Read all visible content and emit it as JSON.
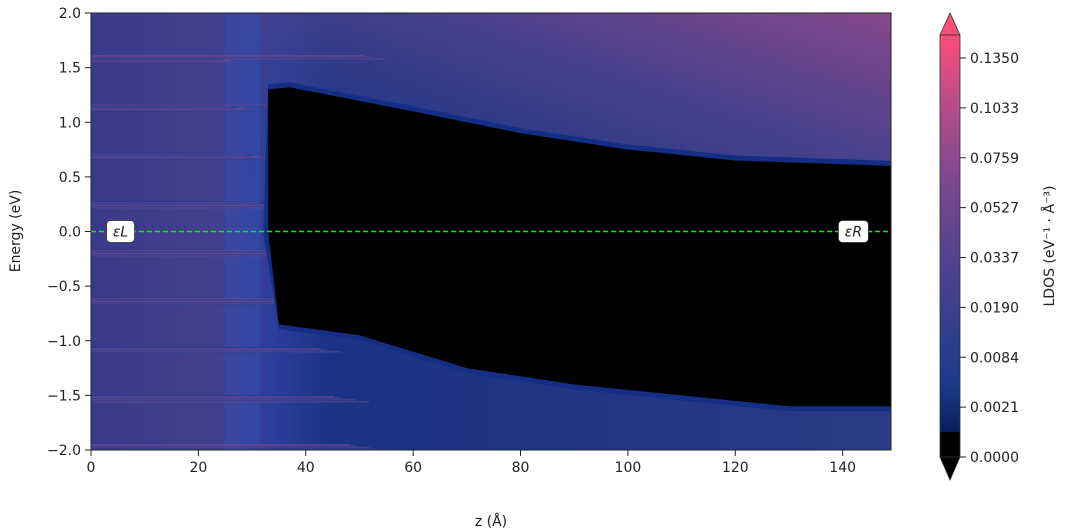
{
  "toolbar": {
    "items": [
      {
        "icon": "home-icon",
        "color": "#2a7fd4"
      },
      {
        "icon": "pencil-icon",
        "color": "#ffffff"
      },
      {
        "icon": "plus-icon",
        "color": "#2a7fd4"
      }
    ]
  },
  "chart_data": {
    "type": "heatmap",
    "title": "",
    "xlabel": "z (Å)",
    "ylabel": "Energy (eV)",
    "xlim": [
      0,
      149
    ],
    "ylim": [
      -2.0,
      2.0
    ],
    "x_ticks": [
      "0",
      "20",
      "40",
      "60",
      "80",
      "100",
      "120",
      "140"
    ],
    "x_tick_values": [
      0,
      20,
      40,
      60,
      80,
      100,
      120,
      140
    ],
    "y_ticks": [
      "−2.0",
      "−1.5",
      "−1.0",
      "−0.5",
      "0.0",
      "0.5",
      "1.0",
      "1.5",
      "2.0"
    ],
    "y_tick_values": [
      -2.0,
      -1.5,
      -1.0,
      -0.5,
      0.0,
      0.5,
      1.0,
      1.5,
      2.0
    ],
    "colorbar": {
      "label": "LDOS (eV⁻¹ · Å⁻³)",
      "ticks": [
        "0.0000",
        "0.0021",
        "0.0084",
        "0.0190",
        "0.0337",
        "0.0527",
        "0.0759",
        "0.1033",
        "0.1350"
      ],
      "colors": [
        "#000000",
        "#0a1f5c",
        "#1a3a8a",
        "#3a3f8f",
        "#55438e",
        "#70478f",
        "#8e4a8f",
        "#b24c8c",
        "#dc4f85",
        "#ff4d7a"
      ]
    },
    "gap_region": {
      "z_start": 33,
      "conduction_band_edge": [
        [
          33,
          1.3
        ],
        [
          37,
          1.32
        ],
        [
          60,
          1.1
        ],
        [
          80,
          0.9
        ],
        [
          100,
          0.75
        ],
        [
          120,
          0.65
        ],
        [
          149,
          0.6
        ]
      ],
      "valence_band_edge": [
        [
          35,
          -0.85
        ],
        [
          50,
          -0.95
        ],
        [
          70,
          -1.25
        ],
        [
          90,
          -1.4
        ],
        [
          110,
          -1.5
        ],
        [
          130,
          -1.6
        ],
        [
          149,
          -1.6
        ]
      ]
    },
    "fermi_level": 0.0,
    "annotations": [
      {
        "text": "εL",
        "x": 5.5,
        "y": 0.0
      },
      {
        "text": "εR",
        "x": 142,
        "y": 0.0
      }
    ]
  }
}
